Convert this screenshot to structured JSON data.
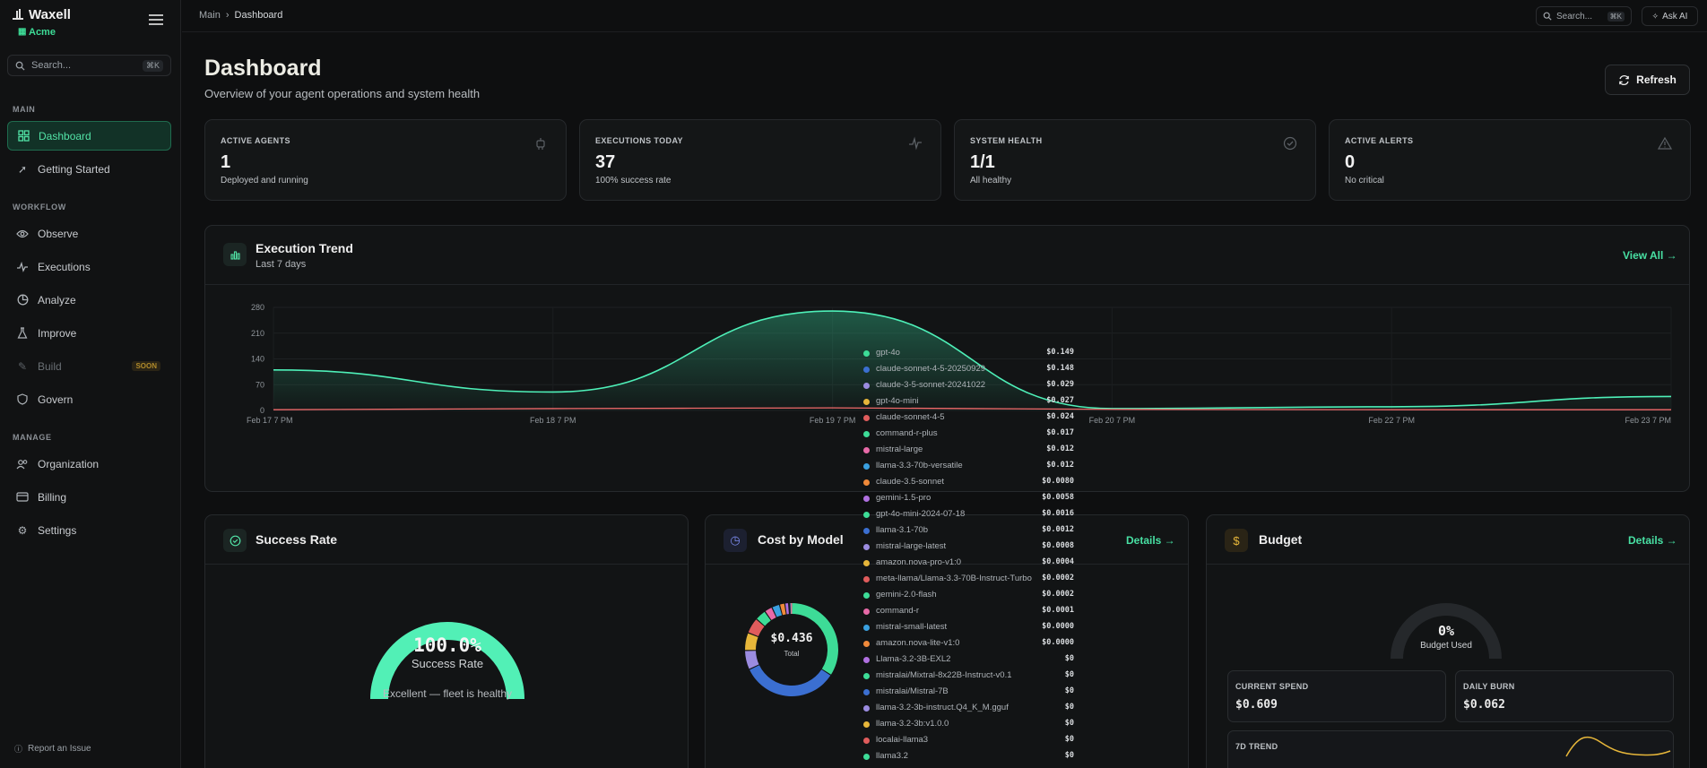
{
  "app": {
    "name": "Waxell",
    "org": "Acme"
  },
  "sidebar": {
    "search_placeholder": "Search...",
    "search_kbd": "⌘K",
    "sections": [
      {
        "label": "MAIN"
      },
      {
        "label": "WORKFLOW"
      },
      {
        "label": "MANAGE"
      }
    ],
    "items": [
      {
        "label": "Dashboard",
        "icon": "grid-icon",
        "active": true
      },
      {
        "label": "Getting Started",
        "icon": "rocket-icon"
      },
      {
        "label": "Observe",
        "icon": "eye-icon"
      },
      {
        "label": "Executions",
        "icon": "activity-icon"
      },
      {
        "label": "Analyze",
        "icon": "chart-pie-icon"
      },
      {
        "label": "Improve",
        "icon": "flask-icon"
      },
      {
        "label": "Build",
        "icon": "wand-icon",
        "badge": "SOON",
        "disabled": true
      },
      {
        "label": "Govern",
        "icon": "shield-icon"
      },
      {
        "label": "Organization",
        "icon": "users-icon"
      },
      {
        "label": "Billing",
        "icon": "credit-card-icon"
      },
      {
        "label": "Settings",
        "icon": "gear-icon"
      }
    ],
    "report_issue": "Report an Issue"
  },
  "topbar": {
    "breadcrumb": [
      "Main",
      "Dashboard"
    ],
    "search_label": "Search...",
    "search_kbd": "⌘K",
    "ask_ai": "Ask AI"
  },
  "header": {
    "title": "Dashboard",
    "subtitle": "Overview of your agent operations and system health",
    "refresh": "Refresh"
  },
  "stats": [
    {
      "label": "ACTIVE AGENTS",
      "value": "1",
      "sub": "Deployed and running",
      "icon": "bot-icon"
    },
    {
      "label": "EXECUTIONS TODAY",
      "value": "37",
      "sub": "100% success rate",
      "icon": "activity-icon"
    },
    {
      "label": "SYSTEM HEALTH",
      "value": "1/1",
      "sub": "All healthy",
      "icon": "check-circle-icon"
    },
    {
      "label": "ACTIVE ALERTS",
      "value": "0",
      "sub": "No critical",
      "icon": "alert-triangle-icon"
    }
  ],
  "trend": {
    "title": "Execution Trend",
    "subtitle": "Last 7 days",
    "view_all": "View All →"
  },
  "chart_data": {
    "type": "line",
    "x": [
      "Feb 17 7 PM",
      "Feb 18 7 PM",
      "Feb 19 7 PM",
      "Feb 20 7 PM",
      "Feb 22 7 PM",
      "Feb 23 7 PM"
    ],
    "y_ticks": [
      "280",
      "210",
      "140",
      "70",
      "0"
    ],
    "ylim": [
      0,
      280
    ],
    "series": [
      {
        "color": "#4ef0b8",
        "values": [
          110,
          50,
          270,
          5,
          10,
          38
        ]
      },
      {
        "color": "#f06a6a",
        "values": [
          2,
          5,
          7,
          3,
          2,
          2
        ]
      }
    ],
    "grid": true
  },
  "success": {
    "title": "Success Rate",
    "value": "100.0%",
    "label": "Success Rate",
    "note": "Excellent — fleet is healthy",
    "rate": 1.0
  },
  "cost": {
    "title": "Cost by Model",
    "details": "Details →",
    "total": "$0.436",
    "total_label": "Total"
  },
  "budget": {
    "title": "Budget",
    "details": "Details →",
    "used_pct": "0%",
    "used_label": "Budget Used",
    "current_spend_label": "CURRENT SPEND",
    "current_spend": "$0.609",
    "daily_burn_label": "DAILY BURN",
    "daily_burn": "$0.062",
    "trend_label": "7D TREND"
  },
  "tooltip": [
    {
      "name": "gpt-4o",
      "cost": "$0.149",
      "color": "#3ddc97"
    },
    {
      "name": "claude-sonnet-4-5-20250929",
      "cost": "$0.148",
      "color": "#3b6fd1"
    },
    {
      "name": "claude-3-5-sonnet-20241022",
      "cost": "$0.029",
      "color": "#9b8ce0"
    },
    {
      "name": "gpt-4o-mini",
      "cost": "$0.027",
      "color": "#e6b63a"
    },
    {
      "name": "claude-sonnet-4-5",
      "cost": "$0.024",
      "color": "#e05c5c"
    },
    {
      "name": "command-r-plus",
      "cost": "$0.017",
      "color": "#3ddc97"
    },
    {
      "name": "mistral-large",
      "cost": "$0.012",
      "color": "#e86aa8"
    },
    {
      "name": "llama-3.3-70b-versatile",
      "cost": "$0.012",
      "color": "#3aa0e0"
    },
    {
      "name": "claude-3.5-sonnet",
      "cost": "$0.0080",
      "color": "#f08a3a"
    },
    {
      "name": "gemini-1.5-pro",
      "cost": "$0.0058",
      "color": "#b070e0"
    },
    {
      "name": "gpt-4o-mini-2024-07-18",
      "cost": "$0.0016",
      "color": "#3ddc97"
    },
    {
      "name": "llama-3.1-70b",
      "cost": "$0.0012",
      "color": "#3b6fd1"
    },
    {
      "name": "mistral-large-latest",
      "cost": "$0.0008",
      "color": "#9b8ce0"
    },
    {
      "name": "amazon.nova-pro-v1:0",
      "cost": "$0.0004",
      "color": "#e6b63a"
    },
    {
      "name": "meta-llama/Llama-3.3-70B-Instruct-Turbo",
      "cost": "$0.0002",
      "color": "#e05c5c"
    },
    {
      "name": "gemini-2.0-flash",
      "cost": "$0.0002",
      "color": "#3ddc97"
    },
    {
      "name": "command-r",
      "cost": "$0.0001",
      "color": "#e86aa8"
    },
    {
      "name": "mistral-small-latest",
      "cost": "$0.0000",
      "color": "#3aa0e0"
    },
    {
      "name": "amazon.nova-lite-v1:0",
      "cost": "$0.0000",
      "color": "#f08a3a"
    },
    {
      "name": "Llama-3.2-3B-EXL2",
      "cost": "$0",
      "color": "#b070e0"
    },
    {
      "name": "mistralai/Mixtral-8x22B-Instruct-v0.1",
      "cost": "$0",
      "color": "#3ddc97"
    },
    {
      "name": "mistralai/Mistral-7B",
      "cost": "$0",
      "color": "#3b6fd1"
    },
    {
      "name": "llama-3.2-3b-instruct.Q4_K_M.gguf",
      "cost": "$0",
      "color": "#9b8ce0"
    },
    {
      "name": "llama-3.2-3b:v1.0.0",
      "cost": "$0",
      "color": "#e6b63a"
    },
    {
      "name": "localai-llama3",
      "cost": "$0",
      "color": "#e05c5c"
    },
    {
      "name": "llama3.2",
      "cost": "$0",
      "color": "#3ddc97"
    }
  ]
}
